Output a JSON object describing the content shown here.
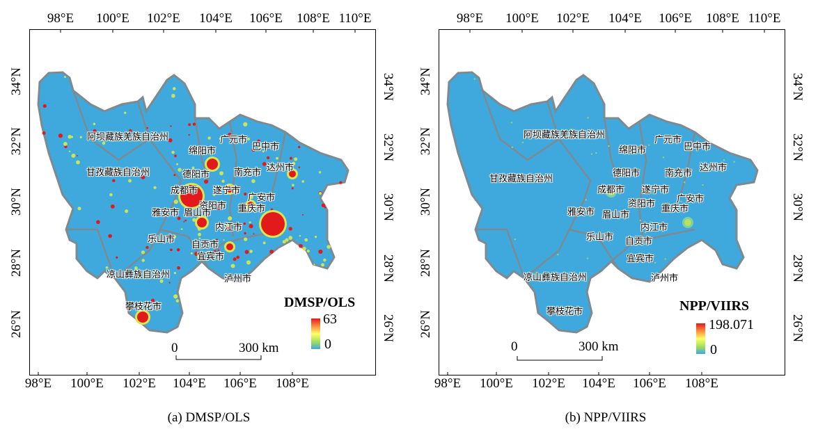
{
  "panels": [
    {
      "caption": "(a) DMSP/OLS",
      "legend": {
        "title": "DMSP/OLS",
        "max": "63",
        "min": "0"
      },
      "scale": {
        "start": "0",
        "end": "300 km"
      }
    },
    {
      "caption": "(b) NPP/VIIRS",
      "legend": {
        "title": "NPP/VIIRS",
        "max": "198.071",
        "min": "0"
      },
      "scale": {
        "start": "0",
        "end": "300 km"
      }
    }
  ],
  "axes": {
    "top_lon": [
      "98°E",
      "100°E",
      "102°E",
      "104°E",
      "106°E",
      "108°E",
      "110°E"
    ],
    "bottom_lon": [
      "98°E",
      "100°E",
      "102°E",
      "104°E",
      "106°E",
      "108°E"
    ],
    "lat": [
      "34°N",
      "32°N",
      "30°N",
      "28°N",
      "26°N"
    ]
  },
  "regions": [
    "阿坝藏族羌族自治州",
    "甘孜藏族自治州",
    "绵阳市",
    "广元市",
    "巴中市",
    "德阳市",
    "南充市",
    "达州市",
    "成都市",
    "遂宁市",
    "广安市",
    "资阳市",
    "重庆市",
    "雅安市",
    "眉山市",
    "内江市",
    "乐山市",
    "自贡市",
    "宜宾市",
    "凉山彝族自治州",
    "泸州市",
    "攀枝花市"
  ],
  "colors": {
    "background_map": "#3fa9de",
    "boundary": "#7d8a90",
    "high": "#e31a1c",
    "mid": "#ffff66",
    "low": "#3fa9de"
  }
}
